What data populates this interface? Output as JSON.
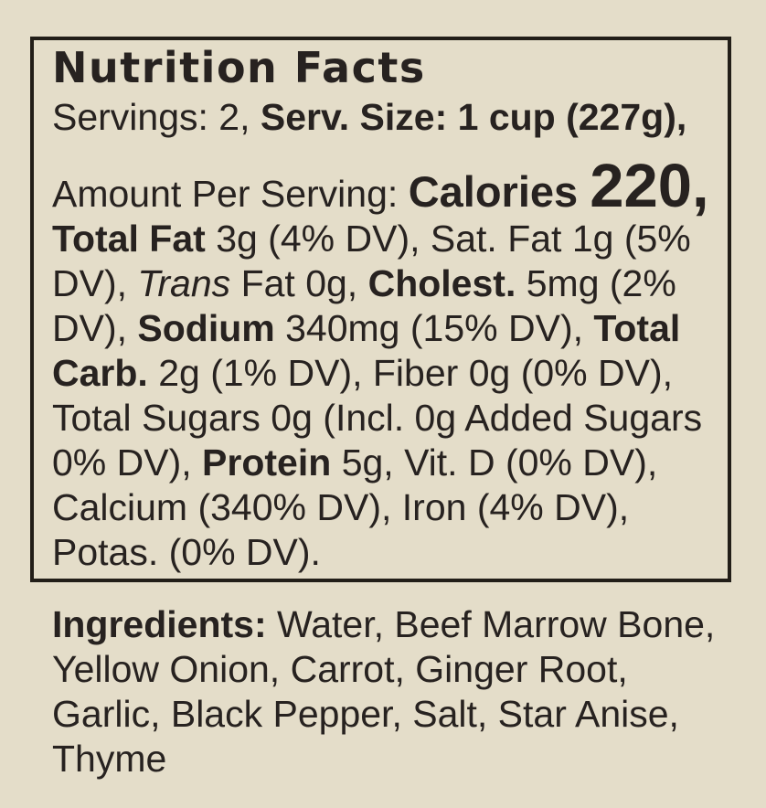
{
  "colors": {
    "background": "#e4ddc9",
    "text": "#272220",
    "box_border": "#221e18"
  },
  "nutrition_facts": {
    "title": "Nutrition Facts",
    "serving_line_segments": [
      {
        "text": "Servings: 2, ",
        "style": "regular"
      },
      {
        "text": "Serv. Size: 1 cup (227g),",
        "style": "bold"
      }
    ],
    "nutrients_segments": [
      {
        "text": "Amount Per Serving: ",
        "style": "regular"
      },
      {
        "text": "Calories ",
        "style": "calories-label"
      },
      {
        "text": "220,",
        "style": "calories-value"
      },
      {
        "text": " ",
        "style": "regular"
      },
      {
        "text": "Total Fat",
        "style": "bold"
      },
      {
        "text": " 3g (4% DV), Sat. Fat 1g (5% DV), ",
        "style": "regular"
      },
      {
        "text": "Trans",
        "style": "italic"
      },
      {
        "text": " Fat 0g, ",
        "style": "regular"
      },
      {
        "text": "Cholest.",
        "style": "bold"
      },
      {
        "text": " 5mg (2% DV), ",
        "style": "regular"
      },
      {
        "text": "Sodium",
        "style": "bold"
      },
      {
        "text": " 340mg (15% DV), ",
        "style": "regular"
      },
      {
        "text": "Total Carb.",
        "style": "bold"
      },
      {
        "text": " 2g (1% DV), Fiber 0g (0% DV), Total Sugars 0g (Incl. 0g Added Sugars 0% DV), ",
        "style": "regular"
      },
      {
        "text": "Protein",
        "style": "bold"
      },
      {
        "text": " 5g, Vit. D (0% DV), Calcium (340% DV), Iron (4% DV), Potas. (0% DV).",
        "style": "regular"
      }
    ],
    "facts": {
      "servings": "2",
      "serving_size": "1 cup (227g)",
      "calories": "220",
      "nutrients": [
        {
          "name": "Total Fat",
          "amount": "3g",
          "daily_value": "4% DV"
        },
        {
          "name": "Sat. Fat",
          "amount": "1g",
          "daily_value": "5% DV"
        },
        {
          "name": "Trans Fat",
          "amount": "0g",
          "daily_value": ""
        },
        {
          "name": "Cholest.",
          "amount": "5mg",
          "daily_value": "2% DV"
        },
        {
          "name": "Sodium",
          "amount": "340mg",
          "daily_value": "15% DV"
        },
        {
          "name": "Total Carb.",
          "amount": "2g",
          "daily_value": "1% DV"
        },
        {
          "name": "Fiber",
          "amount": "0g",
          "daily_value": "0% DV"
        },
        {
          "name": "Total Sugars",
          "amount": "0g",
          "daily_value": ""
        },
        {
          "name": "Added Sugars",
          "amount": "0g",
          "daily_value": "0% DV"
        },
        {
          "name": "Protein",
          "amount": "5g",
          "daily_value": ""
        },
        {
          "name": "Vit. D",
          "amount": "",
          "daily_value": "0% DV"
        },
        {
          "name": "Calcium",
          "amount": "",
          "daily_value": "340% DV"
        },
        {
          "name": "Iron",
          "amount": "",
          "daily_value": "4% DV"
        },
        {
          "name": "Potas.",
          "amount": "",
          "daily_value": "0% DV"
        }
      ]
    }
  },
  "ingredients": {
    "segments": [
      {
        "text": "Ingredients: ",
        "style": "bold"
      },
      {
        "text": " Water, Beef Marrow Bone, Yellow Onion, Carrot, Ginger Root, Garlic, Black Pepper, Salt, Star Anise, Thyme",
        "style": "regular"
      }
    ],
    "label": "Ingredients:",
    "list": [
      "Water",
      "Beef Marrow Bone",
      "Yellow Onion",
      "Carrot",
      "Ginger Root",
      "Garlic",
      "Black Pepper",
      "Salt",
      "Star Anise",
      "Thyme"
    ]
  }
}
